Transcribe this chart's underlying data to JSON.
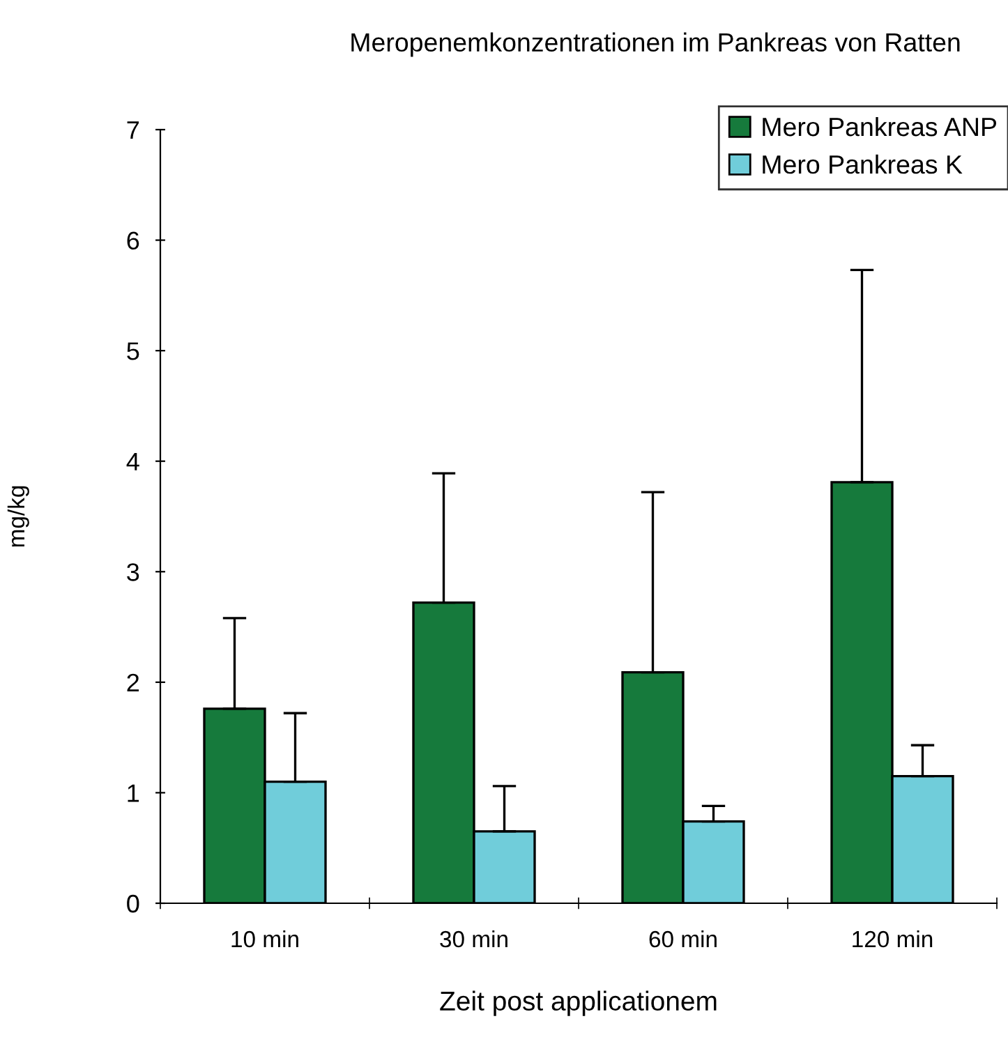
{
  "chart_data": {
    "type": "bar",
    "title": "Meropenemkonzentrationen im Pankreas von Ratten",
    "xlabel": "Zeit post applicationem",
    "ylabel": "mg/kg",
    "categories": [
      "10 min",
      "30 min",
      "60 min",
      "120 min"
    ],
    "series": [
      {
        "name": "Mero Pankreas ANP",
        "color": "#167a3c",
        "values": [
          1.76,
          2.72,
          2.09,
          3.81
        ],
        "errors": [
          [
            1.76,
            2.58
          ],
          [
            2.72,
            3.89
          ],
          [
            2.09,
            3.72
          ],
          [
            3.81,
            5.73
          ]
        ]
      },
      {
        "name": "Mero Pankreas K",
        "color": "#70cdda",
        "values": [
          1.1,
          0.65,
          0.74,
          1.15
        ],
        "errors": [
          [
            1.1,
            1.72
          ],
          [
            0.65,
            1.06
          ],
          [
            0.74,
            0.88
          ],
          [
            1.15,
            1.43
          ]
        ]
      }
    ],
    "ylim": [
      0,
      7
    ],
    "yticks": [
      0,
      1,
      2,
      3,
      4,
      5,
      6,
      7
    ],
    "grid": false,
    "legend": "top right"
  }
}
